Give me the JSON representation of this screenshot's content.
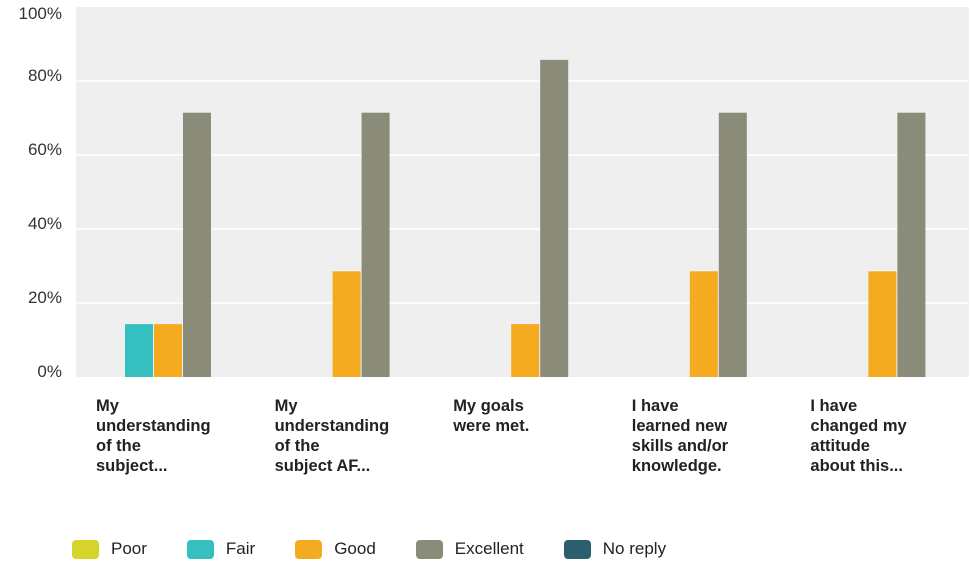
{
  "chart_data": {
    "type": "bar",
    "categories": [
      [
        "My",
        "understanding",
        "of the",
        "subject..."
      ],
      [
        "My",
        "understanding",
        "of the",
        "subject AF..."
      ],
      [
        "My goals",
        "were met."
      ],
      [
        "I have",
        "learned new",
        "skills and/or",
        "knowledge."
      ],
      [
        "I have",
        "changed my",
        "attitude",
        "about this..."
      ]
    ],
    "series": [
      {
        "name": "Poor",
        "color": "#d4d42a",
        "values": [
          0,
          0,
          0,
          0,
          0
        ]
      },
      {
        "name": "Fair",
        "color": "#35bfbf",
        "values": [
          14.29,
          0,
          0,
          0,
          0
        ]
      },
      {
        "name": "Good",
        "color": "#f5ab1f",
        "values": [
          14.29,
          28.57,
          14.29,
          28.57,
          28.57
        ]
      },
      {
        "name": "Excellent",
        "color": "#8a8b79",
        "values": [
          71.43,
          71.43,
          85.71,
          71.43,
          71.43
        ]
      },
      {
        "name": "No reply",
        "color": "#2c5f6e",
        "values": [
          0,
          0,
          0,
          0,
          0
        ]
      }
    ],
    "yticks": [
      "0%",
      "20%",
      "40%",
      "60%",
      "80%",
      "100%"
    ],
    "ylim": [
      0,
      100
    ],
    "grid": true,
    "legend": "bottom"
  }
}
